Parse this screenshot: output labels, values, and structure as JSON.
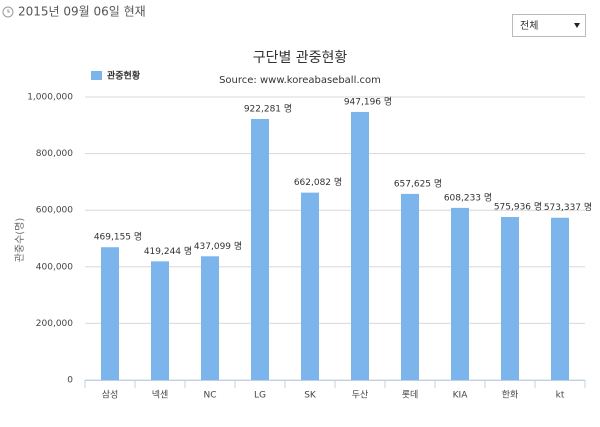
{
  "header": {
    "date": "2015년 09월 06일 현재",
    "filter": "전체"
  },
  "chart_data": {
    "type": "bar",
    "title": "구단별 관중현황",
    "subtitle": "Source: www.koreabaseball.com",
    "y_label": "관중수(명)",
    "categories": [
      "삼성",
      "넥센",
      "NC",
      "LG",
      "SK",
      "두산",
      "롯데",
      "KIA",
      "한화",
      "kt"
    ],
    "series": [
      {
        "name": "관중현황",
        "color": "#7cb5ec",
        "values": [
          469155,
          419244,
          437099,
          922281,
          662082,
          947196,
          657625,
          608233,
          575936,
          573337
        ],
        "value_labels": [
          "469,155 명",
          "419,244 명",
          "437,099 명",
          "922,281 명",
          "662,082 명",
          "947,196 명",
          "657,625 명",
          "608,233 명",
          "575,936 명",
          "573,337 명"
        ]
      }
    ],
    "ylim": [
      0,
      1000000
    ],
    "yticks": [
      0,
      {
        "value": 200000,
        "label": "200,000"
      },
      {
        "value": 400000,
        "label": "400,000"
      },
      {
        "value": 600000,
        "label": "600,000"
      },
      {
        "value": 800000,
        "label": "800,000"
      },
      {
        "value": 1000000,
        "label": "1,000,000"
      }
    ],
    "grid": true
  }
}
